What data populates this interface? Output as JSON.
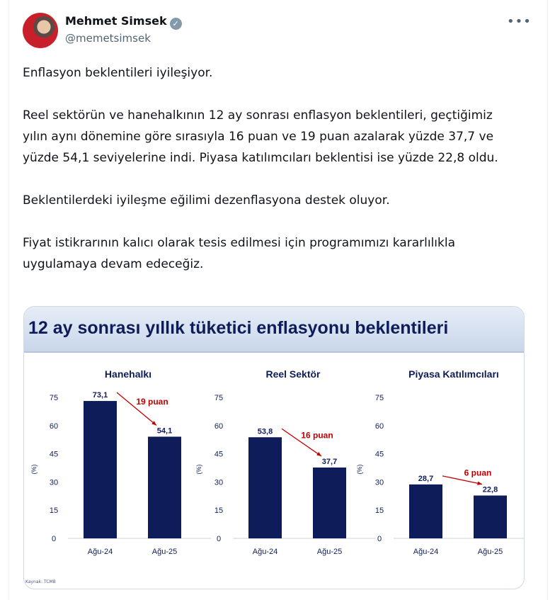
{
  "tweet": {
    "author_name": "Mehmet Simsek",
    "handle": "@memetsimsek",
    "more_icon": "more-horizontal-icon",
    "paragraphs": [
      "Enflasyon beklentileri iyileşiyor.",
      "Reel sektörün ve hanehalkının 12 ay sonrası enflasyon beklentileri, geçtiğimiz yılın aynı dönemine göre sırasıyla 16 puan ve 19 puan azalarak yüzde 37,7 ve yüzde 54,1 seviyelerine indi. Piyasa katılımcıları beklentisi ise yüzde 22,8 oldu.",
      "Beklentilerdeki iyileşme eğilimi dezenflasyona destek oluyor.",
      "Fiyat istikrarının kalıcı olarak tesis edilmesi için programımızı kararlılıkla uygulamaya devam edeceğiz."
    ]
  },
  "media": {
    "title": "12 ay sonrası yıllık tüketici enflasyonu beklentileri",
    "source": "Kaynak: TCMB"
  },
  "chart_data": [
    {
      "type": "bar",
      "title": "Hanehalkı",
      "ylabel": "(%)",
      "categories": [
        "Ağu-24",
        "Ağu-25"
      ],
      "values": [
        73.1,
        54.1
      ],
      "value_labels": [
        "73,1",
        "54,1"
      ],
      "annotation": "19 puan",
      "ylim": [
        0,
        75
      ],
      "yticks": [
        0,
        15,
        30,
        45,
        60,
        75
      ],
      "color": "#0e1d5a",
      "annotation_color": "#c00000"
    },
    {
      "type": "bar",
      "title": "Reel Sektör",
      "ylabel": "(%)",
      "categories": [
        "Ağu-24",
        "Ağu-25"
      ],
      "values": [
        53.8,
        37.7
      ],
      "value_labels": [
        "53,8",
        "37,7"
      ],
      "annotation": "16 puan",
      "ylim": [
        0,
        75
      ],
      "yticks": [
        0,
        15,
        30,
        45,
        60,
        75
      ],
      "color": "#0e1d5a",
      "annotation_color": "#c00000"
    },
    {
      "type": "bar",
      "title": "Piyasa Katılımcıları",
      "ylabel": "(%)",
      "categories": [
        "Ağu-24",
        "Ağu-25"
      ],
      "values": [
        28.7,
        22.8
      ],
      "value_labels": [
        "28,7",
        "22,8"
      ],
      "annotation": "6 puan",
      "ylim": [
        0,
        75
      ],
      "yticks": [
        0,
        15,
        30,
        45,
        60,
        75
      ],
      "color": "#0e1d5a",
      "annotation_color": "#c00000"
    }
  ]
}
